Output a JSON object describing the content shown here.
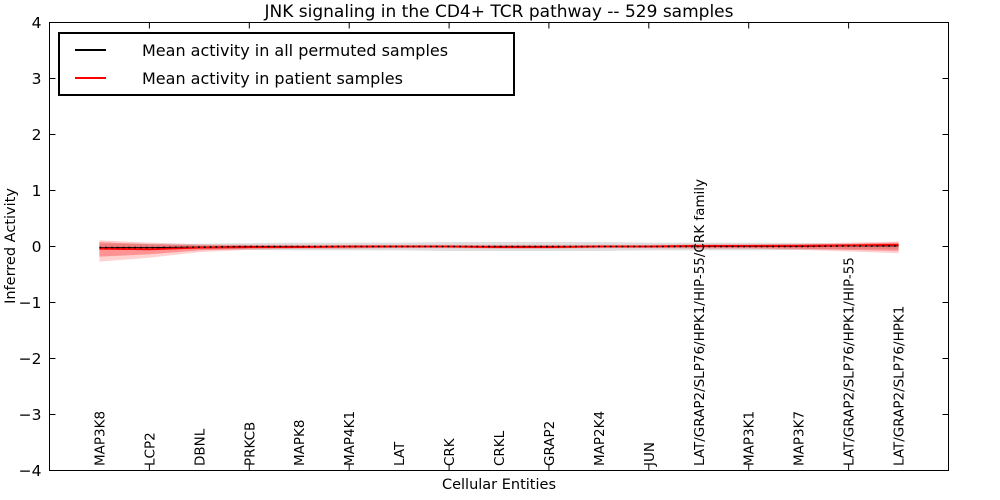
{
  "chart_data": {
    "type": "line",
    "title": "JNK signaling in the CD4+ TCR pathway -- 529 samples",
    "xlabel": "Cellular Entities",
    "ylabel": "Inferred Activity",
    "ylim": [
      -4,
      4
    ],
    "ytick_values": [
      -4,
      -3,
      -2,
      -1,
      0,
      1,
      2,
      3,
      4
    ],
    "ytick_labels": [
      "−4",
      "−3",
      "−2",
      "−1",
      "0",
      "1",
      "2",
      "3",
      "4"
    ],
    "xtick_mark_indices": [
      1,
      3,
      5,
      7,
      9,
      11,
      13,
      15
    ],
    "grid": false,
    "legend_position": "upper left",
    "categories": [
      "MAP3K8",
      "LCP2",
      "DBNL",
      "PRKCB",
      "MAPK8",
      "MAP4K1",
      "LAT",
      "CRK",
      "CRKL",
      "GRAP2",
      "MAP2K4",
      "JUN",
      "LAT/GRAP2/SLP76/HPK1/HIP-55/CRK family",
      "MAP3K1",
      "MAP3K7",
      "LAT/GRAP2/SLP76/HPK1/HIP-55",
      "LAT/GRAP2/SLP76/HPK1"
    ],
    "series": [
      {
        "name": "Mean activity in all permuted samples",
        "color": "#000000",
        "band_color": "rgba(0,0,0,0.13)",
        "values": [
          -0.02,
          -0.02,
          -0.01,
          0,
          0,
          0,
          0,
          0,
          0,
          0,
          0,
          0,
          0,
          0,
          0,
          0.01,
          0.01
        ],
        "band_upper": [
          0.05,
          0.05,
          0.05,
          0.06,
          0.07,
          0.07,
          0.07,
          0.08,
          0.08,
          0.08,
          0.08,
          0.07,
          0.07,
          0.07,
          0.06,
          0.05,
          0.05
        ],
        "band_lower": [
          -0.05,
          -0.05,
          -0.05,
          -0.06,
          -0.07,
          -0.07,
          -0.07,
          -0.08,
          -0.08,
          -0.08,
          -0.08,
          -0.07,
          -0.07,
          -0.07,
          -0.06,
          -0.05,
          -0.05
        ]
      },
      {
        "name": "Mean activity in patient samples",
        "color": "#ff0000",
        "band_inner_color": "rgba(255,0,0,0.30)",
        "band_outer_color": "rgba(255,0,0,0.18)",
        "values": [
          -0.04,
          -0.05,
          -0.02,
          -0.01,
          -0.01,
          0,
          0,
          0,
          -0.01,
          -0.01,
          0,
          0,
          0.01,
          0.01,
          0.01,
          0.02,
          0.03
        ],
        "band_inner_upper": [
          0.08,
          0.04,
          0.02,
          0.02,
          0.02,
          0.02,
          0.02,
          0.02,
          0.02,
          0.02,
          0.02,
          0.02,
          0.03,
          0.03,
          0.04,
          0.05,
          0.07
        ],
        "band_inner_lower": [
          -0.18,
          -0.14,
          -0.07,
          -0.04,
          -0.03,
          -0.03,
          -0.02,
          -0.02,
          -0.03,
          -0.03,
          -0.02,
          -0.02,
          -0.03,
          -0.03,
          -0.04,
          -0.06,
          -0.08
        ],
        "band_outer_upper": [
          0.11,
          0.07,
          0.04,
          0.03,
          0.03,
          0.03,
          0.03,
          0.03,
          0.03,
          0.03,
          0.03,
          0.03,
          0.04,
          0.04,
          0.05,
          0.07,
          0.09
        ],
        "band_outer_lower": [
          -0.27,
          -0.2,
          -0.1,
          -0.06,
          -0.04,
          -0.04,
          -0.03,
          -0.03,
          -0.04,
          -0.04,
          -0.03,
          -0.03,
          -0.04,
          -0.04,
          -0.06,
          -0.09,
          -0.12
        ]
      }
    ]
  }
}
